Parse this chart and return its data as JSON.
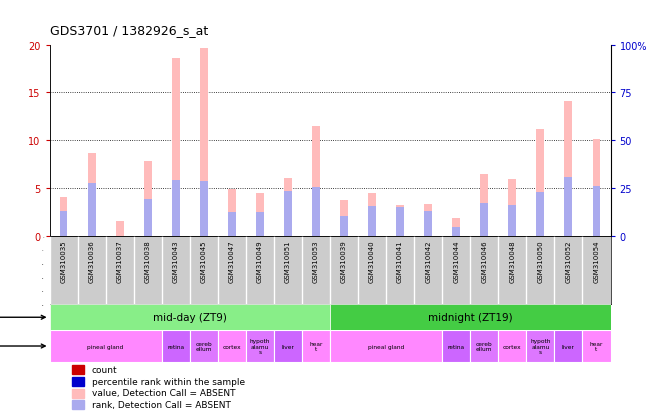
{
  "title": "GDS3701 / 1382926_s_at",
  "samples": [
    "GSM310035",
    "GSM310036",
    "GSM310037",
    "GSM310038",
    "GSM310043",
    "GSM310045",
    "GSM310047",
    "GSM310049",
    "GSM310051",
    "GSM310053",
    "GSM310039",
    "GSM310040",
    "GSM310041",
    "GSM310042",
    "GSM310044",
    "GSM310046",
    "GSM310048",
    "GSM310050",
    "GSM310052",
    "GSM310054"
  ],
  "count_values": [
    4.1,
    8.7,
    1.6,
    7.9,
    18.6,
    19.6,
    4.9,
    4.5,
    6.1,
    11.5,
    3.8,
    4.5,
    3.3,
    3.4,
    1.9,
    6.5,
    6.0,
    11.2,
    14.1,
    10.1
  ],
  "rank_values": [
    2.6,
    5.6,
    0.0,
    3.9,
    5.9,
    5.8,
    2.5,
    2.5,
    4.7,
    5.1,
    2.1,
    3.2,
    3.1,
    2.6,
    1.0,
    3.5,
    3.3,
    4.6,
    6.2,
    5.2
  ],
  "ylim_left": [
    0,
    20
  ],
  "ylim_right": [
    0,
    100
  ],
  "yticks_left": [
    0,
    5,
    10,
    15,
    20
  ],
  "yticks_right": [
    0,
    25,
    50,
    75,
    100
  ],
  "yticklabels_right": [
    "0",
    "25",
    "50",
    "75",
    "100%"
  ],
  "bar_width": 0.28,
  "color_count_absent": "#ffbbbb",
  "color_rank_absent": "#aaaaee",
  "time_groups": [
    {
      "label": "mid-day (ZT9)",
      "start": 0,
      "end": 9,
      "color": "#88ee88"
    },
    {
      "label": "midnight (ZT19)",
      "start": 10,
      "end": 19,
      "color": "#44cc44"
    }
  ],
  "tissue_groups": [
    {
      "label": "pineal gland",
      "start": 0,
      "end": 3,
      "color": "#ff88ff"
    },
    {
      "label": "retina",
      "start": 4,
      "end": 4,
      "color": "#cc66ff"
    },
    {
      "label": "cereb\nellum",
      "start": 5,
      "end": 5,
      "color": "#dd77ff"
    },
    {
      "label": "cortex",
      "start": 6,
      "end": 6,
      "color": "#ff88ff"
    },
    {
      "label": "hypoth\nalamu\ns",
      "start": 7,
      "end": 7,
      "color": "#dd77ff"
    },
    {
      "label": "liver",
      "start": 8,
      "end": 8,
      "color": "#cc66ff"
    },
    {
      "label": "hear\nt",
      "start": 9,
      "end": 9,
      "color": "#ff88ff"
    },
    {
      "label": "pineal gland",
      "start": 10,
      "end": 13,
      "color": "#ff88ff"
    },
    {
      "label": "retina",
      "start": 14,
      "end": 14,
      "color": "#cc66ff"
    },
    {
      "label": "cereb\nellum",
      "start": 15,
      "end": 15,
      "color": "#dd77ff"
    },
    {
      "label": "cortex",
      "start": 16,
      "end": 16,
      "color": "#ff88ff"
    },
    {
      "label": "hypoth\nalamu\ns",
      "start": 17,
      "end": 17,
      "color": "#dd77ff"
    },
    {
      "label": "liver",
      "start": 18,
      "end": 18,
      "color": "#cc66ff"
    },
    {
      "label": "hear\nt",
      "start": 19,
      "end": 19,
      "color": "#ff88ff"
    }
  ],
  "legend_items": [
    {
      "label": "count",
      "color": "#cc0000"
    },
    {
      "label": "percentile rank within the sample",
      "color": "#0000cc"
    },
    {
      "label": "value, Detection Call = ABSENT",
      "color": "#ffbbbb"
    },
    {
      "label": "rank, Detection Call = ABSENT",
      "color": "#aaaaee"
    }
  ],
  "bg_color": "#ffffff",
  "tick_color_left": "#cc0000",
  "tick_color_right": "#0000cc",
  "xtick_bg": "#cccccc"
}
